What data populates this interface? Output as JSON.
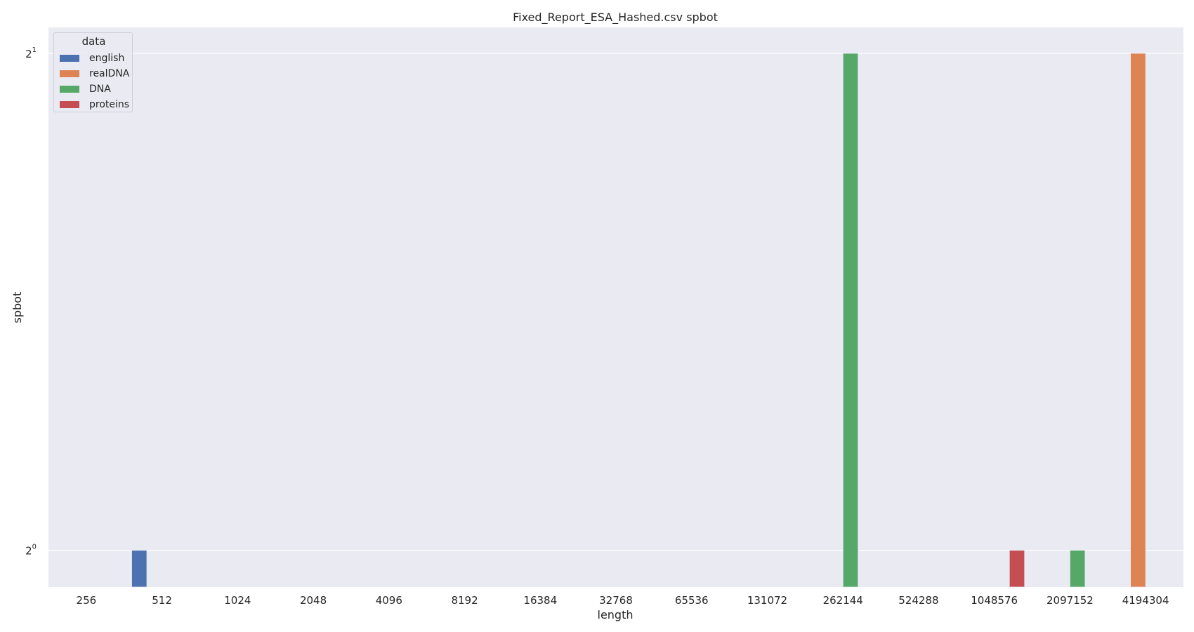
{
  "chart_data": {
    "type": "bar",
    "title": "Fixed_Report_ESA_Hashed.csv spbot",
    "xlabel": "length",
    "ylabel": "spbot",
    "y_scale": "log2",
    "ylim": [
      0.95,
      2
    ],
    "y_ticks": [
      {
        "value": 1,
        "base": "2",
        "exp": "0"
      },
      {
        "value": 2,
        "base": "2",
        "exp": "1"
      }
    ],
    "grid": true,
    "legend_position": "top-left",
    "legend_title": "data",
    "categories": [
      "256",
      "512",
      "1024",
      "2048",
      "4096",
      "8192",
      "16384",
      "32768",
      "65536",
      "131072",
      "262144",
      "524288",
      "1048576",
      "2097152",
      "4194304"
    ],
    "series": [
      {
        "name": "english",
        "color": "#4c72b0",
        "values": [
          null,
          1,
          null,
          null,
          null,
          null,
          null,
          null,
          null,
          null,
          null,
          null,
          null,
          null,
          null
        ]
      },
      {
        "name": "realDNA",
        "color": "#dd8452",
        "values": [
          null,
          null,
          null,
          null,
          null,
          null,
          null,
          null,
          null,
          null,
          null,
          null,
          null,
          null,
          2
        ]
      },
      {
        "name": "DNA",
        "color": "#55a868",
        "values": [
          null,
          null,
          null,
          null,
          null,
          null,
          null,
          null,
          null,
          null,
          2,
          null,
          null,
          1,
          null
        ]
      },
      {
        "name": "proteins",
        "color": "#c44e52",
        "values": [
          null,
          null,
          null,
          null,
          null,
          null,
          null,
          null,
          null,
          null,
          null,
          null,
          1,
          null,
          null
        ]
      }
    ]
  }
}
